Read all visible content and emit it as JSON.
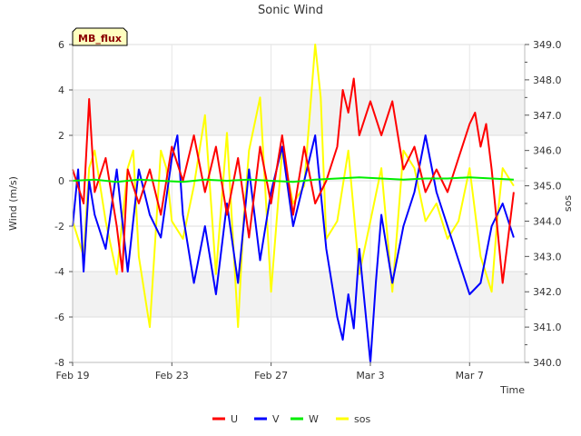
{
  "chart_data": {
    "type": "line",
    "title": "Sonic Wind",
    "site_label": "MB_flux",
    "xlabel": "Time",
    "ylabel": "Wind (m/s)",
    "y2label": "sos",
    "xlim": [
      0,
      20.5
    ],
    "ylim": [
      -8,
      6
    ],
    "y2lim": [
      340.0,
      349.0
    ],
    "x_ticks": [
      {
        "value": 0,
        "label": "Feb 19"
      },
      {
        "value": 4.5,
        "label": "Feb 23"
      },
      {
        "value": 9,
        "label": "Feb 27"
      },
      {
        "value": 13.5,
        "label": "Mar 3"
      },
      {
        "value": 18,
        "label": "Mar 7"
      }
    ],
    "y_ticks": [
      {
        "value": 6,
        "label": "6"
      },
      {
        "value": 4,
        "label": "4"
      },
      {
        "value": 2,
        "label": "2"
      },
      {
        "value": 0,
        "label": "0"
      },
      {
        "value": -2,
        "label": "-2"
      },
      {
        "value": -4,
        "label": "-4"
      },
      {
        "value": -6,
        "label": "-6"
      },
      {
        "value": -8,
        "label": "-8"
      }
    ],
    "y2_ticks": [
      {
        "value": 349.0,
        "label": "349.0"
      },
      {
        "value": 348.0,
        "label": "348.0"
      },
      {
        "value": 347.0,
        "label": "347.0"
      },
      {
        "value": 346.0,
        "label": "346.0"
      },
      {
        "value": 345.0,
        "label": "345.0"
      },
      {
        "value": 344.0,
        "label": "344.0"
      },
      {
        "value": 343.0,
        "label": "343.0"
      },
      {
        "value": 342.0,
        "label": "342.0"
      },
      {
        "value": 341.0,
        "label": "341.0"
      },
      {
        "value": 340.0,
        "label": "340.0"
      }
    ],
    "bands": [
      [
        2,
        4
      ],
      [
        -6,
        -4
      ]
    ],
    "grid": true,
    "legend": "bottom-center",
    "series": [
      {
        "name": "U",
        "color": "#ff0000",
        "axis": "left",
        "x": [
          0,
          0.5,
          0.75,
          1,
          1.5,
          2,
          2.25,
          2.5,
          3,
          3.5,
          4,
          4.5,
          5,
          5.5,
          6,
          6.5,
          7,
          7.5,
          8,
          8.5,
          9,
          9.5,
          10,
          10.5,
          11,
          11.5,
          12,
          12.25,
          12.5,
          12.75,
          13,
          13.5,
          14,
          14.5,
          15,
          15.5,
          16,
          16.5,
          17,
          17.5,
          18,
          18.25,
          18.5,
          18.75,
          19,
          19.5,
          20
        ],
        "y": [
          0.5,
          -1.0,
          3.6,
          -0.5,
          1.0,
          -2.0,
          -4.0,
          0.5,
          -1.0,
          0.5,
          -1.5,
          1.5,
          0.0,
          2.0,
          -0.5,
          1.5,
          -1.5,
          1.0,
          -2.5,
          1.5,
          -1.0,
          2.0,
          -1.5,
          1.5,
          -1.0,
          0.0,
          1.5,
          4.0,
          3.0,
          4.5,
          2.0,
          3.5,
          2.0,
          3.5,
          0.5,
          1.5,
          -0.5,
          0.5,
          -0.5,
          1.0,
          2.5,
          3.0,
          1.5,
          2.5,
          0.5,
          -4.5,
          -0.5
        ]
      },
      {
        "name": "V",
        "color": "#0000ff",
        "axis": "left",
        "x": [
          0,
          0.25,
          0.5,
          0.75,
          1,
          1.5,
          2,
          2.5,
          3,
          3.5,
          4,
          4.5,
          4.75,
          5,
          5.5,
          6,
          6.5,
          7,
          7.5,
          8,
          8.5,
          9,
          9.5,
          10,
          10.5,
          11,
          11.25,
          11.5,
          12,
          12.25,
          12.5,
          12.75,
          13,
          13.25,
          13.5,
          13.75,
          14,
          14.5,
          15,
          15.5,
          16,
          16.5,
          17,
          17.5,
          18,
          18.5,
          19,
          19.5,
          20
        ],
        "y": [
          -2.0,
          0.5,
          -4.0,
          0.0,
          -1.5,
          -3.0,
          0.5,
          -4.0,
          0.5,
          -1.5,
          -2.5,
          1.0,
          2.0,
          -1.5,
          -4.5,
          -2.0,
          -5.0,
          -1.0,
          -4.5,
          0.5,
          -3.5,
          -0.5,
          1.5,
          -2.0,
          0.0,
          2.0,
          -0.5,
          -3.0,
          -6.0,
          -7.0,
          -5.0,
          -6.5,
          -3.0,
          -5.5,
          -8.0,
          -4.5,
          -1.5,
          -4.5,
          -2.0,
          -0.5,
          2.0,
          -0.5,
          -2.0,
          -3.5,
          -5.0,
          -4.5,
          -2.0,
          -1.0,
          -2.5
        ]
      },
      {
        "name": "W",
        "color": "#00ee00",
        "axis": "left",
        "x": [
          0,
          1,
          2,
          3,
          4,
          5,
          6,
          7,
          8,
          9,
          10,
          11,
          12,
          13,
          14,
          15,
          16,
          17,
          18,
          19,
          20
        ],
        "y": [
          0.0,
          0.05,
          -0.05,
          0.05,
          0.0,
          -0.05,
          0.05,
          0.0,
          0.05,
          0.0,
          -0.05,
          0.05,
          0.1,
          0.15,
          0.1,
          0.05,
          0.1,
          0.1,
          0.15,
          0.1,
          0.05
        ]
      },
      {
        "name": "sos",
        "color": "#ffff00",
        "axis": "right",
        "x": [
          0,
          0.5,
          0.75,
          1,
          1.5,
          2,
          2.5,
          2.75,
          3,
          3.5,
          4,
          4.25,
          4.5,
          5,
          5.5,
          6,
          6.5,
          7,
          7.5,
          7.75,
          8,
          8.5,
          9,
          9.5,
          10,
          10.5,
          11,
          11.25,
          11.5,
          12,
          12.5,
          13,
          13.5,
          14,
          14.5,
          15,
          15.5,
          16,
          16.5,
          17,
          17.5,
          18,
          18.5,
          19,
          19.25,
          19.5,
          20
        ],
        "y": [
          344.0,
          343.0,
          345.5,
          346.0,
          344.0,
          342.5,
          345.5,
          346.0,
          343.0,
          341.0,
          346.0,
          345.5,
          344.0,
          343.5,
          345.0,
          347.0,
          342.5,
          346.5,
          341.0,
          344.0,
          346.0,
          347.5,
          342.0,
          346.0,
          344.5,
          345.0,
          349.0,
          347.5,
          343.5,
          344.0,
          346.0,
          342.5,
          344.0,
          345.5,
          342.0,
          346.0,
          345.5,
          344.0,
          344.5,
          343.5,
          344.0,
          345.5,
          343.0,
          342.0,
          344.0,
          345.5,
          345.0
        ]
      }
    ]
  }
}
